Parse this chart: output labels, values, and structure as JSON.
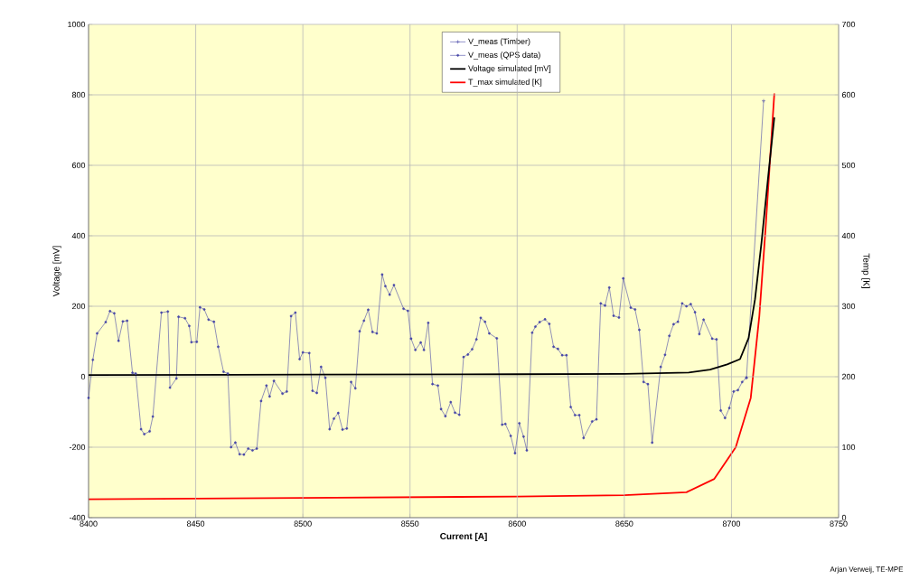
{
  "chart_data": {
    "type": "line",
    "xlabel": "Current [A]",
    "ylabel": "Voltage [mV]",
    "y2label": "Temp [K]",
    "xlim": [
      8400,
      8750
    ],
    "xticks": [
      8400,
      8450,
      8500,
      8550,
      8600,
      8650,
      8700,
      8750
    ],
    "ylim": [
      -400,
      1000
    ],
    "yticks": [
      -400,
      -200,
      0,
      200,
      400,
      600,
      800,
      1000
    ],
    "y2lim": [
      0,
      700
    ],
    "y2ticks": [
      0,
      100,
      200,
      300,
      400,
      500,
      600,
      700
    ],
    "grid": true,
    "legend": "top",
    "annotations": [
      "Arjan Verweij, TE-MPE"
    ],
    "series": [
      {
        "name": "V_meas (Timber)",
        "color": "#4848a8",
        "marker": "cross",
        "x": [
          8707,
          8715
        ],
        "values": [
          -3,
          783
        ]
      },
      {
        "name": "V_meas (QPS data)",
        "color": "#4848a8",
        "marker": "circle",
        "x": [
          8400,
          8402,
          8404,
          8408,
          8410,
          8412,
          8414,
          8416,
          8418,
          8420.5,
          8422,
          8424.5,
          8426,
          8428.5,
          8430,
          8434,
          8437,
          8438,
          8441,
          8442,
          8445,
          8447,
          8448,
          8450.5,
          8452,
          8454,
          8456,
          8458.5,
          8460.5,
          8463,
          8465,
          8466.5,
          8468.5,
          8470.5,
          8472.5,
          8474.5,
          8476.5,
          8478.5,
          8480.5,
          8483,
          8484.5,
          8486.5,
          8490.5,
          8492.5,
          8494.5,
          8496.5,
          8498.5,
          8500,
          8503,
          8504.5,
          8506.5,
          8508.5,
          8510.5,
          8512.5,
          8514.5,
          8516.5,
          8518.5,
          8520.5,
          8522.5,
          8524.5,
          8526.5,
          8528.5,
          8530.5,
          8532.5,
          8534.5,
          8537,
          8538.5,
          8540.5,
          8542.5,
          8547,
          8549,
          8550.5,
          8552.5,
          8555,
          8556.5,
          8558.5,
          8560.5,
          8563,
          8564.5,
          8566.5,
          8569,
          8571,
          8573,
          8575,
          8577,
          8579,
          8581,
          8583,
          8585,
          8587,
          8590.5,
          8593,
          8594.5,
          8597,
          8599,
          8601,
          8603,
          8604.5,
          8607,
          8608.5,
          8610.5,
          8613,
          8615,
          8617,
          8619,
          8621,
          8623,
          8625,
          8627,
          8629,
          8631,
          8635,
          8637,
          8639,
          8641,
          8643,
          8645,
          8647.5,
          8649.5,
          8653,
          8655,
          8657,
          8659,
          8661,
          8663,
          8667,
          8669,
          8671,
          8673,
          8675,
          8677,
          8679,
          8681,
          8683,
          8685,
          8687,
          8691,
          8693,
          8695,
          8697,
          8699,
          8701,
          8703,
          8705,
          8707
        ],
        "values": [
          -60,
          48,
          123,
          155,
          186,
          180,
          102,
          157,
          159,
          11,
          9,
          -149,
          -163,
          -155,
          -113,
          182,
          185,
          -31,
          -5,
          170,
          166,
          144,
          98,
          99,
          197,
          191,
          162,
          156,
          85,
          14,
          9,
          -200,
          -187,
          -220,
          -221,
          -204,
          -209,
          -204,
          -69,
          -25,
          -56,
          -12,
          -48,
          -42,
          172,
          182,
          50,
          69,
          67,
          -40,
          -46,
          28,
          -3,
          -149,
          -119,
          -103,
          -150,
          -147,
          -15,
          -33,
          129,
          159,
          190,
          127,
          123,
          290,
          257,
          233,
          260,
          193,
          187,
          108,
          76,
          97,
          76,
          153,
          -21,
          -25,
          -92,
          -112,
          -72,
          -102,
          -108,
          56,
          63,
          78,
          106,
          167,
          156,
          123,
          109,
          -136,
          -134,
          -168,
          -217,
          -132,
          -170,
          -209,
          125,
          142,
          155,
          163,
          150,
          85,
          79,
          61,
          61,
          -86,
          -109,
          -109,
          -174,
          -127,
          -121,
          208,
          202,
          253,
          173,
          168,
          279,
          196,
          191,
          133,
          -15,
          -21,
          -187,
          28,
          62,
          116,
          149,
          156,
          208,
          200,
          206,
          183,
          121,
          162,
          108,
          106,
          -96,
          -117,
          -89,
          -42,
          -38,
          -15,
          -3
        ]
      },
      {
        "name": "Voltage simulated [mV]",
        "color": "#000000",
        "marker": "none",
        "x": [
          8400,
          8500,
          8600,
          8650,
          8680,
          8690,
          8698,
          8704,
          8708,
          8711,
          8714,
          8717,
          8720
        ],
        "values": [
          5,
          6,
          7,
          8,
          12,
          20,
          35,
          50,
          110,
          220,
          380,
          560,
          736
        ]
      },
      {
        "name": "T_max simulated [K]",
        "color": "#ff0000",
        "marker": "none",
        "axis": "y2",
        "x": [
          8400,
          8500,
          8600,
          8650,
          8679,
          8692,
          8702,
          8709,
          8713,
          8716,
          8720
        ],
        "values": [
          26,
          28,
          30,
          32,
          36,
          55,
          100,
          170,
          286,
          414,
          602
        ]
      }
    ]
  }
}
